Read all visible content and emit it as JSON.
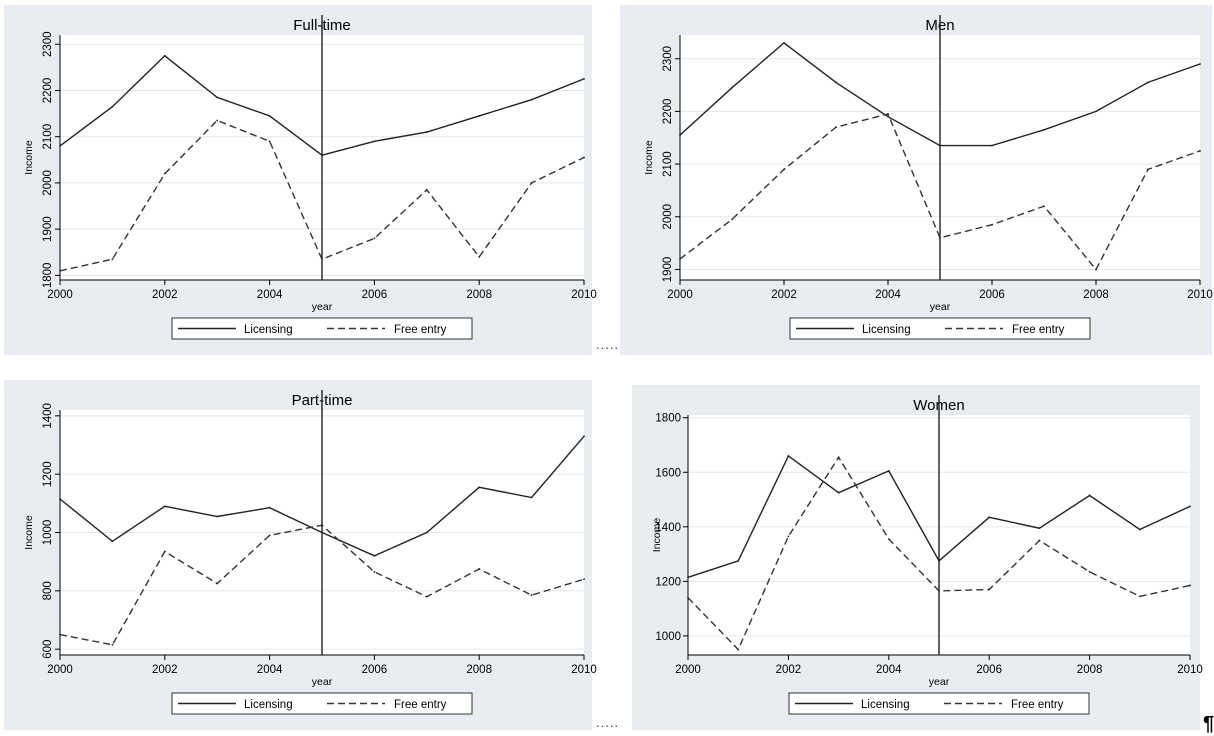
{
  "chart_data": [
    {
      "type": "line",
      "title": "Full-time",
      "xlabel": "year",
      "ylabel": "Income",
      "x": [
        2000,
        2001,
        2002,
        2003,
        2004,
        2005,
        2006,
        2007,
        2008,
        2009,
        2010
      ],
      "xticks": [
        2000,
        2002,
        2004,
        2006,
        2008,
        2010
      ],
      "yticks": [
        1800,
        1900,
        2000,
        2100,
        2200,
        2300
      ],
      "ylim": [
        1790,
        2320
      ],
      "ytick_rotated": true,
      "vline": 2005,
      "grid": true,
      "series": [
        {
          "name": "Licensing",
          "style": "solid",
          "values": [
            2080,
            2165,
            2275,
            2185,
            2145,
            2060,
            2090,
            2110,
            2145,
            2180,
            2225
          ]
        },
        {
          "name": "Free entry",
          "style": "dashed",
          "values": [
            1810,
            1835,
            2020,
            2135,
            2090,
            1835,
            1880,
            1985,
            1840,
            2000,
            2055
          ]
        }
      ]
    },
    {
      "type": "line",
      "title": "Men",
      "xlabel": "year",
      "ylabel": "Income",
      "x": [
        2000,
        2001,
        2002,
        2003,
        2004,
        2005,
        2006,
        2007,
        2008,
        2009,
        2010
      ],
      "xticks": [
        2000,
        2002,
        2004,
        2006,
        2008,
        2010
      ],
      "yticks": [
        1900,
        2000,
        2100,
        2200,
        2300
      ],
      "ylim": [
        1880,
        2345
      ],
      "ytick_rotated": true,
      "vline": 2005,
      "grid": true,
      "series": [
        {
          "name": "Licensing",
          "style": "solid",
          "values": [
            2155,
            2245,
            2330,
            2255,
            2190,
            2135,
            2135,
            2165,
            2200,
            2255,
            2290
          ]
        },
        {
          "name": "Free entry",
          "style": "dashed",
          "values": [
            1920,
            1995,
            2090,
            2170,
            2195,
            1960,
            1985,
            2020,
            1900,
            2090,
            2125
          ]
        }
      ]
    },
    {
      "type": "line",
      "title": "Part-time",
      "xlabel": "year",
      "ylabel": "Income",
      "x": [
        2000,
        2001,
        2002,
        2003,
        2004,
        2005,
        2006,
        2007,
        2008,
        2009,
        2010
      ],
      "xticks": [
        2000,
        2002,
        2004,
        2006,
        2008,
        2010
      ],
      "yticks": [
        600,
        800,
        1000,
        1200,
        1400
      ],
      "ylim": [
        580,
        1420
      ],
      "ytick_rotated": true,
      "vline": 2005,
      "grid": true,
      "series": [
        {
          "name": "Licensing",
          "style": "solid",
          "values": [
            1115,
            970,
            1090,
            1055,
            1085,
            1000,
            920,
            1000,
            1155,
            1120,
            1330
          ]
        },
        {
          "name": "Free entry",
          "style": "dashed",
          "values": [
            650,
            615,
            935,
            825,
            990,
            1025,
            865,
            780,
            875,
            785,
            840
          ]
        }
      ]
    },
    {
      "type": "line",
      "title": "Women",
      "xlabel": "year",
      "ylabel": "Income",
      "x": [
        2000,
        2001,
        2002,
        2003,
        2004,
        2005,
        2006,
        2007,
        2008,
        2009,
        2010
      ],
      "xticks": [
        2000,
        2002,
        2004,
        2006,
        2008,
        2010
      ],
      "yticks": [
        1000,
        1200,
        1400,
        1600,
        1800
      ],
      "ylim": [
        930,
        1810
      ],
      "ytick_rotated": false,
      "vline": 2005,
      "grid": true,
      "series": [
        {
          "name": "Licensing",
          "style": "solid",
          "values": [
            1215,
            1275,
            1660,
            1525,
            1605,
            1275,
            1435,
            1395,
            1515,
            1390,
            1475
          ]
        },
        {
          "name": "Free entry",
          "style": "dashed",
          "values": [
            1140,
            950,
            1365,
            1655,
            1355,
            1165,
            1170,
            1350,
            1235,
            1145,
            1185
          ]
        }
      ]
    }
  ],
  "legend": {
    "licensing": "Licensing",
    "free_entry": "Free entry"
  },
  "separators": {
    "top": ".....",
    "bottom": "....."
  },
  "pilcrow": "¶"
}
